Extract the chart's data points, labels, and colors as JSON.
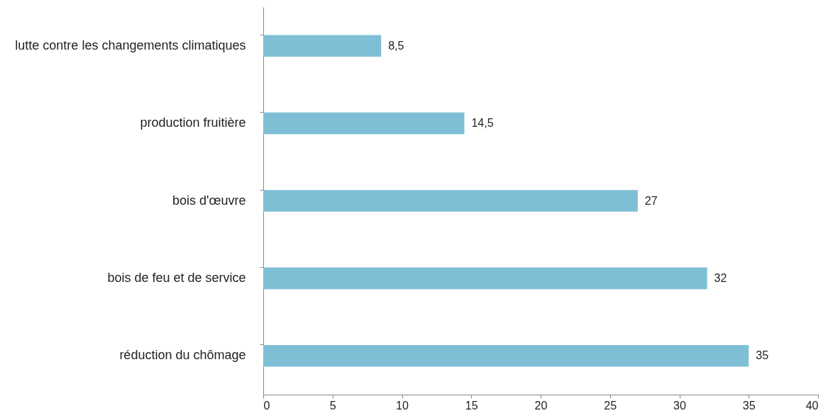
{
  "chart_data": {
    "type": "bar",
    "orientation": "horizontal",
    "categories": [
      "lutte contre les changements climatiques",
      "production fruitière",
      "bois d'œuvre",
      "bois de feu et de service",
      "réduction du chômage"
    ],
    "values": [
      8.5,
      14.5,
      27,
      32,
      35
    ],
    "value_labels": [
      "8,5",
      "14,5",
      "27",
      "32",
      "35"
    ],
    "color": "#7fbfd6",
    "xlim": [
      0,
      40
    ],
    "xticks": [
      0,
      5,
      10,
      15,
      20,
      25,
      30,
      35,
      40
    ],
    "grid": false
  }
}
